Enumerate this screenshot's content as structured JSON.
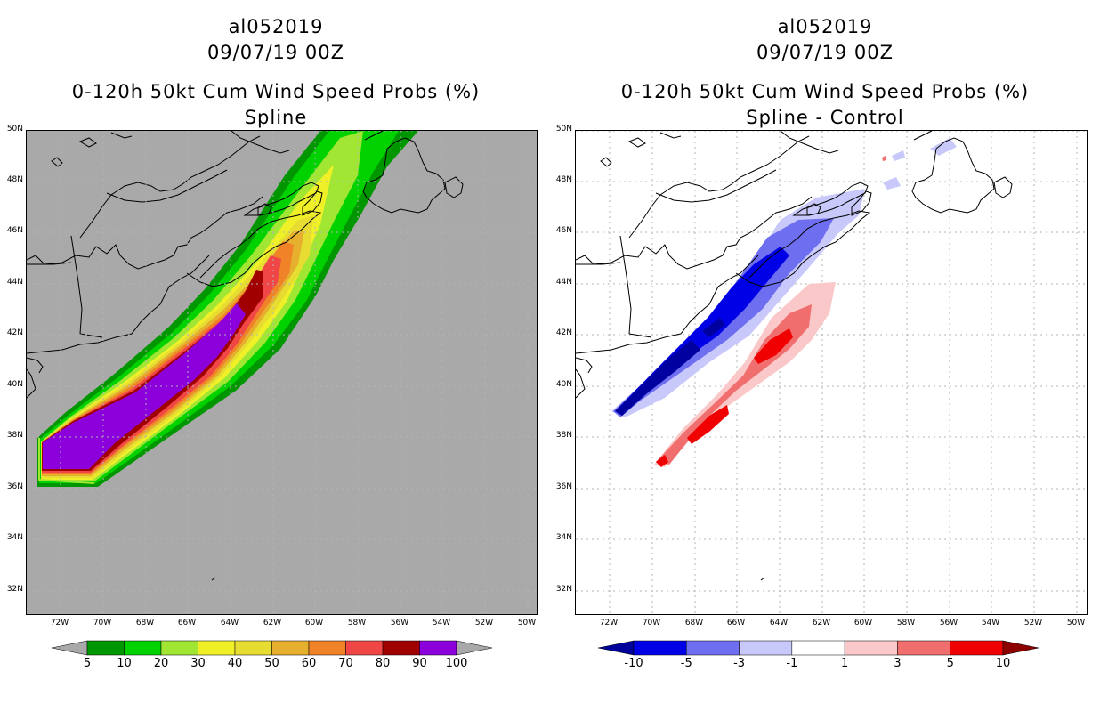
{
  "left": {
    "storm_id": "al052019",
    "datetime": "09/07/19 00Z",
    "title": "0-120h 50kt Cum Wind Speed Probs (%)",
    "subtitle": "Spline",
    "colorbar": {
      "labels": [
        "5",
        "10",
        "20",
        "30",
        "40",
        "50",
        "60",
        "70",
        "80",
        "90",
        "100"
      ],
      "colors": [
        "#009600",
        "#00d200",
        "#a0e632",
        "#f0f028",
        "#e6dc32",
        "#e6af2d",
        "#f08228",
        "#f04646",
        "#a00000",
        "#8c00dc"
      ]
    }
  },
  "right": {
    "storm_id": "al052019",
    "datetime": "09/07/19 00Z",
    "title": "0-120h 50kt Cum Wind Speed Probs (%)",
    "subtitle": "Spline - Control",
    "colorbar": {
      "labels": [
        "-10",
        "-5",
        "-3",
        "-1",
        "1",
        "3",
        "5",
        "10"
      ],
      "colors": [
        "#0000e6",
        "#6e6ef0",
        "#c8c8fa",
        "#ffffff",
        "#fac8c8",
        "#f06e6e",
        "#f00000"
      ]
    }
  },
  "axes": {
    "lat_labels": [
      "50N",
      "48N",
      "46N",
      "44N",
      "42N",
      "40N",
      "38N",
      "36N",
      "34N",
      "32N"
    ],
    "lon_labels": [
      "72W",
      "70W",
      "68W",
      "66W",
      "64W",
      "62W",
      "60W",
      "58W",
      "56W",
      "54W",
      "52W",
      "50W"
    ]
  },
  "colors": {
    "land_bg_left": "#a9a9a9",
    "coast": "#000000",
    "grid": "#b4b4b4"
  }
}
